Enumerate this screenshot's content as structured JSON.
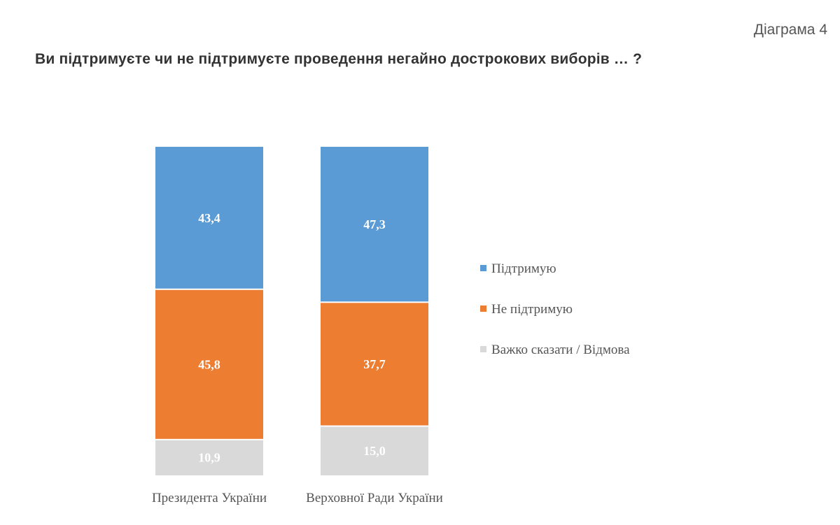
{
  "header": {
    "diagram_label": "Діаграма 4"
  },
  "chart_data": {
    "type": "bar",
    "stacked": true,
    "title": "Ви підтримуєте чи не підтримуєте проведення негайно дострокових виборів … ?",
    "categories": [
      "Президента України",
      "Верховної Ради України"
    ],
    "series": [
      {
        "name": "Підтримую",
        "values": [
          43.4,
          47.3
        ],
        "labels": [
          "43,4",
          "47,3"
        ],
        "color": "#5b9bd5"
      },
      {
        "name": "Не підтримую",
        "values": [
          45.8,
          37.7
        ],
        "labels": [
          "45,8",
          "37,7"
        ],
        "color": "#ed7d31"
      },
      {
        "name": "Важко сказати / Відмова",
        "values": [
          10.9,
          15.0
        ],
        "labels": [
          "10,9",
          "15,0"
        ],
        "color": "#d9d9d9"
      }
    ],
    "ylim": [
      0,
      100
    ],
    "grid": false,
    "legend_position": "right"
  }
}
